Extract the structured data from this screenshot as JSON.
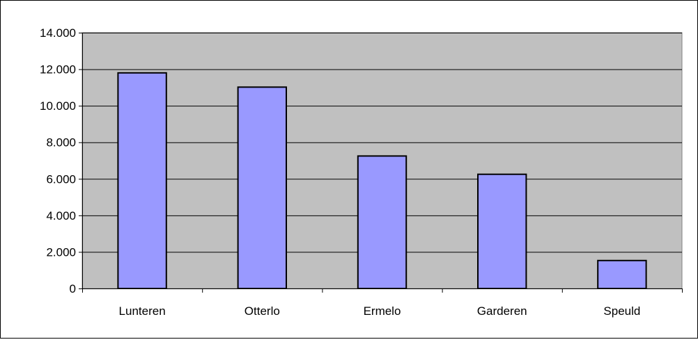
{
  "chart_data": {
    "type": "bar",
    "categories": [
      "Lunteren",
      "Otterlo",
      "Ermelo",
      "Garderen",
      "Speuld"
    ],
    "values": [
      11800,
      11020,
      7250,
      6250,
      1530
    ],
    "y_tick_labels": [
      "0",
      "2.000",
      "4.000",
      "6.000",
      "8.000",
      "10.000",
      "12.000",
      "14.000"
    ],
    "y_ticks": [
      0,
      2000,
      4000,
      6000,
      8000,
      10000,
      12000,
      14000
    ],
    "ylim": [
      0,
      14000
    ],
    "grid": true,
    "legend": "none",
    "colors": {
      "bar_fill": "#9999ff",
      "plot_background": "#c0c0c0",
      "gridline": "#000000",
      "outline": "#000000"
    }
  }
}
